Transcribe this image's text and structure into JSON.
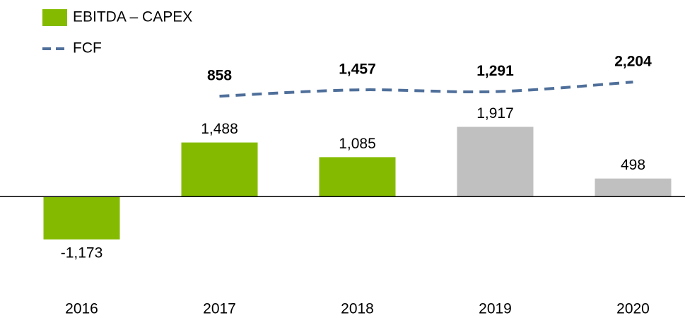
{
  "chart_data": {
    "type": "bar",
    "categories": [
      "2016",
      "2017",
      "2018",
      "2019",
      "2020"
    ],
    "ylim": [
      -2400,
      5400
    ],
    "y2lim": [
      -17000,
      10000
    ],
    "series": [
      {
        "name": "EBITDA – CAPEX",
        "type": "bar",
        "color": "#84bb00",
        "colors": [
          "#84bb00",
          "#84bb00",
          "#84bb00",
          "#c0c0c0",
          "#c0c0c0"
        ],
        "values": [
          -1173,
          1488,
          1085,
          1917,
          498
        ],
        "value_labels": [
          "-1,173",
          "1,488",
          "1,085",
          "1,917",
          "498"
        ]
      },
      {
        "name": "FCF",
        "type": "line",
        "axis": "y2",
        "color": "#4f6f9a",
        "dashed": true,
        "values": [
          null,
          858,
          1457,
          1291,
          2204
        ],
        "value_labels": [
          null,
          "858",
          "1,457",
          "1,291",
          "2,204"
        ]
      }
    ],
    "legend": "top-left"
  }
}
